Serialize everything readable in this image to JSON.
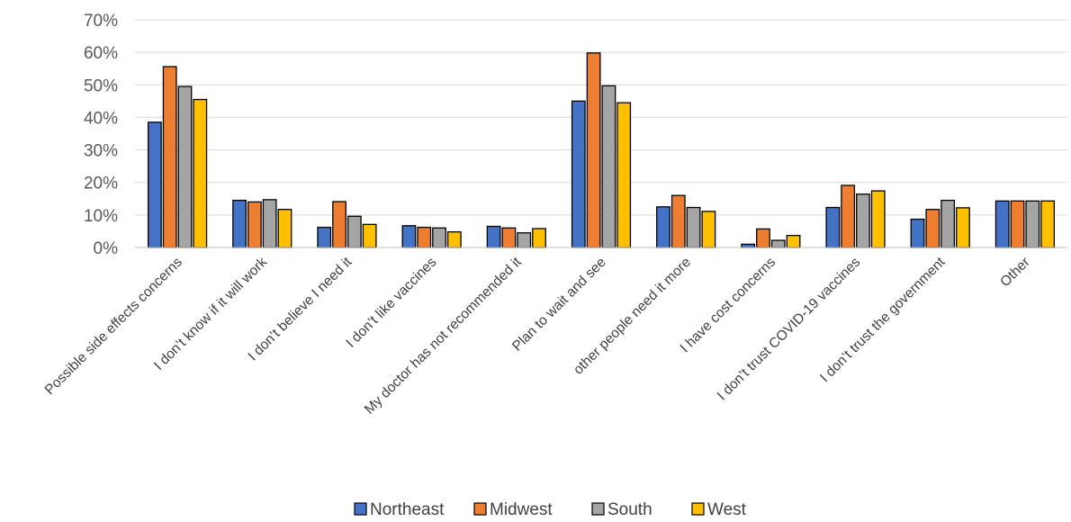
{
  "chart_data": {
    "type": "bar",
    "title": "",
    "xlabel": "",
    "ylabel": "",
    "ylim": [
      0,
      70
    ],
    "y_ticks": [
      0,
      10,
      20,
      30,
      40,
      50,
      60,
      70
    ],
    "y_tick_format": "percent",
    "grid": "horizontal",
    "legend_position": "bottom",
    "categories": [
      "Possible side effects concerns",
      "I don’t know if it will work",
      "I don’t believe I need it",
      "I don’t like vaccines",
      "My doctor has not recommended it",
      "Plan to wait and see",
      "other people need it more",
      "I have cost concerns",
      "I don’t trust COVID-19 vaccines",
      "I don’t trust the government",
      "Other"
    ],
    "series": [
      {
        "name": "Northeast",
        "color": "#4472C4",
        "values": [
          38.5,
          14.5,
          6.2,
          6.7,
          6.5,
          45.0,
          12.5,
          1.0,
          12.3,
          8.7,
          14.3
        ]
      },
      {
        "name": "Midwest",
        "color": "#ED7D31",
        "values": [
          55.6,
          14.0,
          14.1,
          6.2,
          6.0,
          59.8,
          16.0,
          5.7,
          19.1,
          11.7,
          14.3
        ]
      },
      {
        "name": "South",
        "color": "#A5A5A5",
        "values": [
          49.5,
          14.7,
          9.6,
          6.0,
          4.5,
          49.7,
          12.3,
          2.2,
          16.4,
          14.5,
          14.3
        ]
      },
      {
        "name": "West",
        "color": "#FFC000",
        "values": [
          45.5,
          11.7,
          7.1,
          4.8,
          5.8,
          44.5,
          11.1,
          3.7,
          17.4,
          12.2,
          14.3
        ]
      }
    ]
  }
}
